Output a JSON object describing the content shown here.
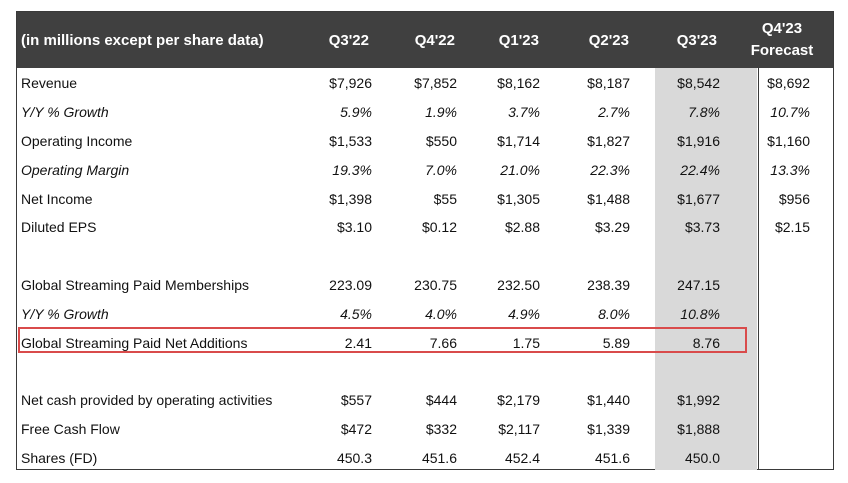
{
  "header": {
    "label": "(in millions except per share data)",
    "cols": [
      "Q3'22",
      "Q4'22",
      "Q1'23",
      "Q2'23",
      "Q3'23"
    ],
    "forecast_line1": "Q4'23",
    "forecast_line2": "Forecast"
  },
  "rows": [
    {
      "label": "Revenue",
      "italic": false,
      "values": [
        "$7,926",
        "$7,852",
        "$8,162",
        "$8,187",
        "$8,542",
        "$8,692"
      ]
    },
    {
      "label": "Y/Y % Growth",
      "italic": true,
      "values": [
        "5.9%",
        "1.9%",
        "3.7%",
        "2.7%",
        "7.8%",
        "10.7%"
      ]
    },
    {
      "label": "Operating Income",
      "italic": false,
      "values": [
        "$1,533",
        "$550",
        "$1,714",
        "$1,827",
        "$1,916",
        "$1,160"
      ]
    },
    {
      "label": "Operating Margin",
      "italic": true,
      "values": [
        "19.3%",
        "7.0%",
        "21.0%",
        "22.3%",
        "22.4%",
        "13.3%"
      ]
    },
    {
      "label": "Net Income",
      "italic": false,
      "values": [
        "$1,398",
        "$55",
        "$1,305",
        "$1,488",
        "$1,677",
        "$956"
      ]
    },
    {
      "label": "Diluted EPS",
      "italic": false,
      "values": [
        "$3.10",
        "$0.12",
        "$2.88",
        "$3.29",
        "$3.73",
        "$2.15"
      ]
    },
    {
      "label": "Global Streaming Paid Memberships",
      "italic": false,
      "values": [
        "223.09",
        "230.75",
        "232.50",
        "238.39",
        "247.15",
        ""
      ]
    },
    {
      "label": "Y/Y % Growth",
      "italic": true,
      "values": [
        "4.5%",
        "4.0%",
        "4.9%",
        "8.0%",
        "10.8%",
        ""
      ]
    },
    {
      "label": "Global Streaming Paid Net Additions",
      "italic": false,
      "values": [
        "2.41",
        "7.66",
        "1.75",
        "5.89",
        "8.76",
        ""
      ]
    },
    {
      "label": "Net cash provided by operating activities",
      "italic": false,
      "values": [
        "$557",
        "$444",
        "$2,179",
        "$1,440",
        "$1,992",
        ""
      ]
    },
    {
      "label": "Free Cash Flow",
      "italic": false,
      "values": [
        "$472",
        "$332",
        "$2,117",
        "$1,339",
        "$1,888",
        ""
      ]
    },
    {
      "label": "Shares (FD)",
      "italic": false,
      "values": [
        "450.3",
        "451.6",
        "452.4",
        "451.6",
        "450.0",
        ""
      ]
    }
  ],
  "highlight_color": "#d94b4b"
}
